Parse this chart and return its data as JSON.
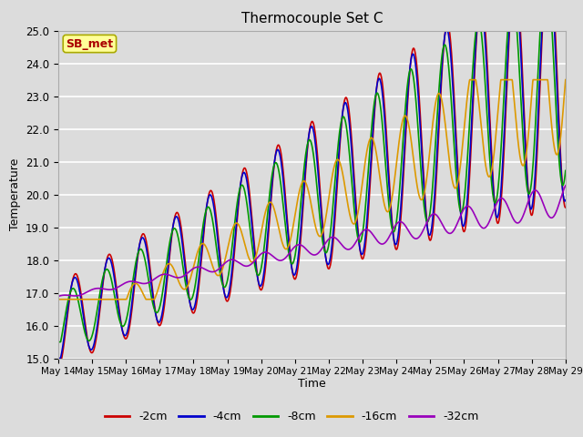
{
  "title": "Thermocouple Set C",
  "xlabel": "Time",
  "ylabel": "Temperature",
  "ylim": [
    15.0,
    25.0
  ],
  "yticks": [
    15.0,
    16.0,
    17.0,
    18.0,
    19.0,
    20.0,
    21.0,
    22.0,
    23.0,
    24.0,
    25.0
  ],
  "series_colors": [
    "#cc0000",
    "#0000cc",
    "#009900",
    "#dd9900",
    "#9900bb"
  ],
  "series_labels": [
    "-2cm",
    "-4cm",
    "-8cm",
    "-16cm",
    "-32cm"
  ],
  "annotation_text": "SB_met",
  "annotation_fg": "#aa0000",
  "annotation_bg": "#ffff99",
  "annotation_edge": "#aaaa00",
  "plot_bg": "#dcdcdc",
  "fig_bg": "#dcdcdc",
  "grid_color": "#ffffff",
  "lw": 1.2
}
